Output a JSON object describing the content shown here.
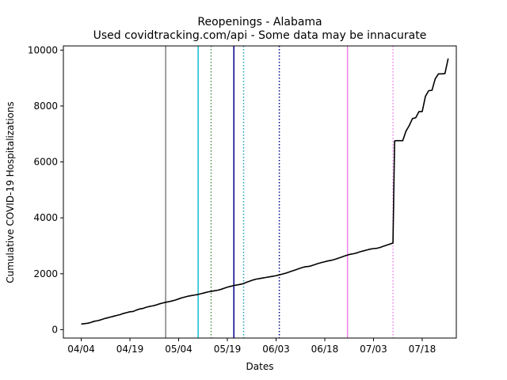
{
  "chart_data": {
    "type": "line",
    "title": "Reopenings - Alabama",
    "subtitle": "Used covidtracking.com/api - Some data may be innacurate",
    "xlabel": "Dates",
    "ylabel": "Cumulative COVID-19 Hospitalizations",
    "x_origin": "2020-04-04",
    "xlim": [
      -5.5,
      115.5
    ],
    "ylim": [
      -300,
      10150
    ],
    "x_ticks": [
      {
        "day": 0,
        "label": "04/04"
      },
      {
        "day": 15,
        "label": "04/19"
      },
      {
        "day": 30,
        "label": "05/04"
      },
      {
        "day": 45,
        "label": "05/19"
      },
      {
        "day": 60,
        "label": "06/03"
      },
      {
        "day": 75,
        "label": "06/18"
      },
      {
        "day": 90,
        "label": "07/03"
      },
      {
        "day": 105,
        "label": "07/18"
      }
    ],
    "y_ticks": [
      0,
      2000,
      4000,
      6000,
      8000,
      10000
    ],
    "grid": false,
    "series": [
      {
        "color": "#000000",
        "points": [
          [
            0,
            200
          ],
          [
            2,
            230
          ],
          [
            3,
            260
          ],
          [
            4,
            300
          ],
          [
            5,
            320
          ],
          [
            6,
            350
          ],
          [
            7,
            390
          ],
          [
            8,
            420
          ],
          [
            9,
            450
          ],
          [
            10,
            480
          ],
          [
            11,
            510
          ],
          [
            12,
            540
          ],
          [
            13,
            580
          ],
          [
            14,
            610
          ],
          [
            15,
            640
          ],
          [
            16,
            650
          ],
          [
            17,
            700
          ],
          [
            18,
            740
          ],
          [
            19,
            760
          ],
          [
            20,
            800
          ],
          [
            21,
            830
          ],
          [
            22,
            850
          ],
          [
            23,
            880
          ],
          [
            24,
            920
          ],
          [
            25,
            950
          ],
          [
            26,
            980
          ],
          [
            27,
            1000
          ],
          [
            28,
            1030
          ],
          [
            29,
            1060
          ],
          [
            30,
            1100
          ],
          [
            31,
            1140
          ],
          [
            32,
            1170
          ],
          [
            33,
            1200
          ],
          [
            34,
            1220
          ],
          [
            35,
            1240
          ],
          [
            36,
            1260
          ],
          [
            37,
            1290
          ],
          [
            38,
            1320
          ],
          [
            39,
            1350
          ],
          [
            40,
            1370
          ],
          [
            41,
            1390
          ],
          [
            42,
            1410
          ],
          [
            43,
            1440
          ],
          [
            44,
            1480
          ],
          [
            45,
            1520
          ],
          [
            46,
            1550
          ],
          [
            47,
            1580
          ],
          [
            48,
            1600
          ],
          [
            49,
            1620
          ],
          [
            50,
            1650
          ],
          [
            51,
            1700
          ],
          [
            52,
            1740
          ],
          [
            53,
            1780
          ],
          [
            54,
            1810
          ],
          [
            55,
            1830
          ],
          [
            56,
            1850
          ],
          [
            57,
            1870
          ],
          [
            58,
            1890
          ],
          [
            59,
            1910
          ],
          [
            60,
            1930
          ],
          [
            61,
            1960
          ],
          [
            62,
            1990
          ],
          [
            63,
            2020
          ],
          [
            64,
            2060
          ],
          [
            65,
            2100
          ],
          [
            66,
            2140
          ],
          [
            67,
            2180
          ],
          [
            68,
            2220
          ],
          [
            69,
            2250
          ],
          [
            70,
            2260
          ],
          [
            71,
            2290
          ],
          [
            72,
            2330
          ],
          [
            73,
            2370
          ],
          [
            74,
            2400
          ],
          [
            75,
            2430
          ],
          [
            76,
            2460
          ],
          [
            77,
            2480
          ],
          [
            78,
            2510
          ],
          [
            79,
            2550
          ],
          [
            80,
            2590
          ],
          [
            81,
            2630
          ],
          [
            82,
            2670
          ],
          [
            83,
            2700
          ],
          [
            84,
            2720
          ],
          [
            85,
            2750
          ],
          [
            86,
            2790
          ],
          [
            87,
            2820
          ],
          [
            88,
            2850
          ],
          [
            89,
            2880
          ],
          [
            90,
            2900
          ],
          [
            91,
            2910
          ],
          [
            92,
            2940
          ],
          [
            93,
            2980
          ],
          [
            94,
            3020
          ],
          [
            95,
            3060
          ],
          [
            96,
            3100
          ],
          [
            96.5,
            6750
          ],
          [
            97,
            6760
          ],
          [
            98,
            6760
          ],
          [
            99,
            6760
          ],
          [
            100,
            7100
          ],
          [
            101,
            7300
          ],
          [
            102,
            7550
          ],
          [
            103,
            7580
          ],
          [
            104,
            7800
          ],
          [
            105,
            7800
          ],
          [
            106,
            8350
          ],
          [
            107,
            8550
          ],
          [
            108,
            8560
          ],
          [
            109,
            8970
          ],
          [
            110,
            9150
          ],
          [
            111,
            9150
          ],
          [
            112,
            9160
          ],
          [
            113,
            9700
          ]
        ]
      }
    ],
    "reopening_lines": [
      {
        "day": 26,
        "color": "#808080",
        "style": "solid"
      },
      {
        "day": 36,
        "color": "#17becf",
        "style": "solid"
      },
      {
        "day": 40,
        "color": "#4c8c4c",
        "style": "dotted"
      },
      {
        "day": 47,
        "color": "#00008b",
        "style": "solid"
      },
      {
        "day": 50,
        "color": "#1f9eb4",
        "style": "dotted"
      },
      {
        "day": 61,
        "color": "#00008b",
        "style": "dotted"
      },
      {
        "day": 82,
        "color": "#ee82ee",
        "style": "solid"
      },
      {
        "day": 96,
        "color": "#ee82ee",
        "style": "dotted"
      }
    ]
  }
}
